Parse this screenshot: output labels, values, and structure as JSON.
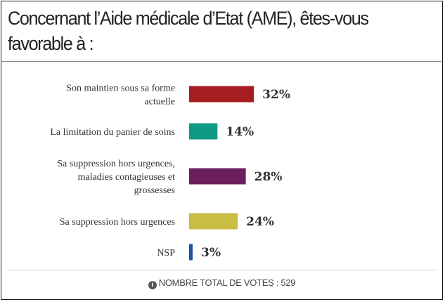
{
  "title_lines": [
    "Concernant l’Aide médicale d’Etat (AME), êtes-vous",
    "favorable à :"
  ],
  "footer": {
    "icon": "info-icon",
    "text": "NOMBRE TOTAL DE VOTES : 529"
  },
  "chart_data": {
    "type": "bar",
    "orientation": "horizontal",
    "title": "Concernant l’Aide médicale d’Etat (AME), êtes-vous favorable à :",
    "categories": [
      [
        "Son maintien sous sa forme",
        "actuelle"
      ],
      [
        "La limitation du panier de soins"
      ],
      [
        "Sa suppression hors urgences,",
        "maladies contagieuses et",
        "grossesses"
      ],
      [
        "Sa suppression hors urgences"
      ],
      [
        "NSP"
      ]
    ],
    "values": [
      32,
      14,
      28,
      24,
      3
    ],
    "value_labels": [
      "32%",
      "14%",
      "28%",
      "24%",
      "3%"
    ],
    "colors": [
      "#a51d1f",
      "#0f9a84",
      "#6b1f5d",
      "#c9bd45",
      "#1d4fa3"
    ],
    "unit": "%",
    "grid": false
  }
}
